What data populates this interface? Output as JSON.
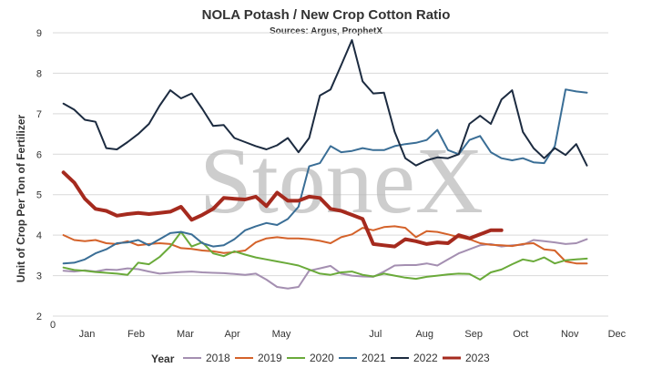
{
  "chart_data": {
    "type": "line",
    "title": "NOLA Potash / New Crop Cotton Ratio",
    "subtitle": "Sources: Argus, ProphetX",
    "ylabel": "Unit of Crop Per Ton of Fertilizer",
    "xlabel": "",
    "ylim": [
      2,
      9
    ],
    "yticks": [
      2,
      3,
      4,
      5,
      6,
      7,
      8,
      9
    ],
    "xlim": [
      0,
      52
    ],
    "x_origin_label": "0",
    "month_ticks": [
      {
        "label": "Jan",
        "x": 3.2
      },
      {
        "label": "Feb",
        "x": 7.8
      },
      {
        "label": "Mar",
        "x": 12.4
      },
      {
        "label": "Apr",
        "x": 16.8
      },
      {
        "label": "May",
        "x": 21.4
      },
      {
        "label": "Jul",
        "x": 30.2
      },
      {
        "label": "Aug",
        "x": 34.8
      },
      {
        "label": "Sep",
        "x": 39.4
      },
      {
        "label": "Oct",
        "x": 43.8
      },
      {
        "label": "Nov",
        "x": 48.4
      },
      {
        "label": "Dec",
        "x": 52.8
      }
    ],
    "grid": {
      "horizontal": true,
      "vertical": false
    },
    "legend_title": "Year",
    "legend_position": "bottom",
    "watermark": "StoneX",
    "series": [
      {
        "name": "2018",
        "color": "#a48fb1",
        "width": 2,
        "x": [
          1,
          2,
          3,
          4,
          5,
          6,
          7,
          8,
          9,
          10,
          11,
          12,
          13,
          14,
          15,
          16,
          17,
          18,
          19,
          20,
          21,
          22,
          23,
          24,
          25,
          26,
          27,
          28,
          29,
          30,
          31,
          32,
          33,
          34,
          35,
          36,
          37,
          38,
          39,
          40,
          41,
          42,
          43,
          44,
          45,
          46,
          47,
          48,
          49,
          50
        ],
        "values": [
          3.12,
          3.1,
          3.13,
          3.1,
          3.15,
          3.14,
          3.18,
          3.16,
          3.1,
          3.05,
          3.07,
          3.09,
          3.1,
          3.08,
          3.07,
          3.06,
          3.04,
          3.02,
          3.05,
          2.9,
          2.72,
          2.68,
          2.72,
          3.12,
          3.18,
          3.24,
          3.05,
          3.0,
          2.98,
          2.97,
          3.1,
          3.25,
          3.26,
          3.26,
          3.3,
          3.25,
          3.4,
          3.55,
          3.65,
          3.75,
          3.78,
          3.72,
          3.75,
          3.76,
          3.88,
          3.85,
          3.82,
          3.78,
          3.8,
          3.9
        ]
      },
      {
        "name": "2019",
        "color": "#d4622a",
        "width": 2,
        "x": [
          1,
          2,
          3,
          4,
          5,
          6,
          7,
          8,
          9,
          10,
          11,
          12,
          13,
          14,
          15,
          16,
          17,
          18,
          19,
          20,
          21,
          22,
          23,
          24,
          25,
          26,
          27,
          28,
          29,
          30,
          31,
          32,
          33,
          34,
          35,
          36,
          37,
          38,
          39,
          40,
          41,
          42,
          43,
          44,
          45,
          46,
          47,
          48,
          49,
          50
        ],
        "values": [
          4.0,
          3.88,
          3.85,
          3.88,
          3.8,
          3.78,
          3.85,
          3.75,
          3.78,
          3.8,
          3.78,
          3.68,
          3.66,
          3.62,
          3.6,
          3.56,
          3.58,
          3.62,
          3.82,
          3.92,
          3.95,
          3.92,
          3.92,
          3.9,
          3.86,
          3.8,
          3.95,
          4.02,
          4.18,
          4.12,
          4.2,
          4.22,
          4.18,
          3.95,
          4.1,
          4.08,
          4.02,
          3.95,
          3.9,
          3.8,
          3.76,
          3.75,
          3.73,
          3.78,
          3.8,
          3.65,
          3.62,
          3.35,
          3.3,
          3.3
        ]
      },
      {
        "name": "2020",
        "color": "#6aaa3a",
        "width": 2,
        "x": [
          1,
          2,
          3,
          4,
          5,
          6,
          7,
          8,
          9,
          10,
          11,
          12,
          13,
          14,
          15,
          16,
          17,
          18,
          19,
          20,
          21,
          22,
          23,
          24,
          25,
          26,
          27,
          28,
          29,
          30,
          31,
          32,
          33,
          34,
          35,
          36,
          37,
          38,
          39,
          40,
          41,
          42,
          43,
          44,
          45,
          46,
          47,
          48,
          49,
          50
        ],
        "values": [
          3.2,
          3.14,
          3.12,
          3.09,
          3.07,
          3.05,
          3.02,
          3.32,
          3.28,
          3.46,
          3.72,
          4.08,
          3.72,
          3.82,
          3.55,
          3.48,
          3.6,
          3.52,
          3.45,
          3.4,
          3.35,
          3.3,
          3.25,
          3.15,
          3.05,
          3.02,
          3.08,
          3.1,
          3.02,
          2.98,
          3.05,
          3.0,
          2.95,
          2.92,
          2.97,
          3.0,
          3.03,
          3.05,
          3.04,
          2.9,
          3.08,
          3.15,
          3.28,
          3.4,
          3.35,
          3.45,
          3.3,
          3.38,
          3.4,
          3.42
        ]
      },
      {
        "name": "2021",
        "color": "#3a6e96",
        "width": 2,
        "x": [
          1,
          2,
          3,
          4,
          5,
          6,
          7,
          8,
          9,
          10,
          11,
          12,
          13,
          14,
          15,
          16,
          17,
          18,
          19,
          20,
          21,
          22,
          23,
          24,
          25,
          26,
          27,
          28,
          29,
          30,
          31,
          32,
          33,
          34,
          35,
          36,
          37,
          38,
          39,
          40,
          41,
          42,
          43,
          44,
          45,
          46,
          47,
          48,
          49,
          50
        ],
        "values": [
          3.3,
          3.32,
          3.4,
          3.55,
          3.65,
          3.8,
          3.82,
          3.88,
          3.75,
          3.9,
          4.05,
          4.08,
          4.02,
          3.8,
          3.72,
          3.75,
          3.9,
          4.12,
          4.22,
          4.3,
          4.25,
          4.4,
          4.7,
          5.7,
          5.78,
          6.2,
          6.05,
          6.08,
          6.15,
          6.1,
          6.1,
          6.2,
          6.25,
          6.28,
          6.35,
          6.6,
          6.1,
          6.0,
          6.35,
          6.45,
          6.05,
          5.9,
          5.85,
          5.9,
          5.8,
          5.78,
          6.2,
          7.6,
          7.55,
          7.52
        ]
      },
      {
        "name": "2022",
        "color": "#1c2b40",
        "width": 2,
        "x": [
          1,
          2,
          3,
          4,
          5,
          6,
          7,
          8,
          9,
          10,
          11,
          12,
          13,
          14,
          15,
          16,
          17,
          18,
          19,
          20,
          21,
          22,
          23,
          24,
          25,
          26,
          27,
          28,
          29,
          30,
          31,
          32,
          33,
          34,
          35,
          36,
          37,
          38,
          39,
          40,
          41,
          42,
          43,
          44,
          45,
          46,
          47,
          48,
          49,
          50
        ],
        "values": [
          7.25,
          7.1,
          6.85,
          6.8,
          6.15,
          6.12,
          6.3,
          6.5,
          6.75,
          7.2,
          7.58,
          7.38,
          7.5,
          7.12,
          6.7,
          6.72,
          6.4,
          6.3,
          6.2,
          6.12,
          6.22,
          6.4,
          6.05,
          6.4,
          7.45,
          7.6,
          8.2,
          8.82,
          7.8,
          7.5,
          7.52,
          6.55,
          5.9,
          5.72,
          5.85,
          5.92,
          5.9,
          6.0,
          6.75,
          6.95,
          6.75,
          7.35,
          7.58,
          6.55,
          6.15,
          5.9,
          6.15,
          5.98,
          6.25,
          5.72
        ]
      },
      {
        "name": "2023",
        "color": "#a52a1e",
        "width": 4,
        "x": [
          1,
          2,
          3,
          4,
          5,
          6,
          7,
          8,
          9,
          10,
          11,
          12,
          13,
          14,
          15,
          16,
          17,
          18,
          19,
          20,
          21,
          22,
          23,
          24,
          25,
          26,
          27,
          28,
          29,
          30,
          31,
          32,
          33,
          34,
          35,
          36,
          37,
          38,
          39,
          40,
          41,
          42
        ],
        "values": [
          5.55,
          5.3,
          4.9,
          4.65,
          4.6,
          4.48,
          4.52,
          4.55,
          4.52,
          4.55,
          4.58,
          4.7,
          4.38,
          4.5,
          4.65,
          4.92,
          4.9,
          4.88,
          4.95,
          4.72,
          5.05,
          4.85,
          4.85,
          4.95,
          4.92,
          4.65,
          4.6,
          4.5,
          4.4,
          3.78,
          3.75,
          3.72,
          3.9,
          3.85,
          3.78,
          3.82,
          3.8,
          4.0,
          3.92,
          4.02,
          4.12,
          4.12
        ]
      }
    ]
  }
}
